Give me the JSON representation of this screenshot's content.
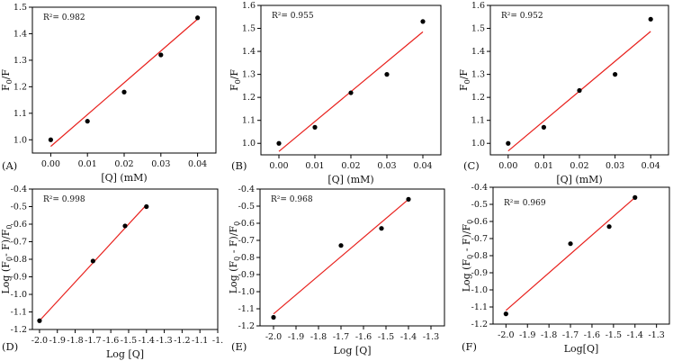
{
  "figure": {
    "title": "Stern-Volmer and double-log plots"
  },
  "chart_data": [
    {
      "panel_label": "(A)",
      "type": "scatter",
      "xlabel": "[Q] (mM)",
      "ylabel": "F0/F",
      "x": [
        0.0,
        0.01,
        0.02,
        0.03,
        0.04
      ],
      "y": [
        1.0,
        1.07,
        1.18,
        1.32,
        1.46
      ],
      "fit": {
        "x": [
          0.0,
          0.04
        ],
        "y": [
          0.975,
          1.455
        ]
      },
      "r2": "R²= 0.982",
      "xlim": [
        -0.005,
        0.045
      ],
      "ylim": [
        0.95,
        1.5
      ],
      "xticks": [
        0.0,
        0.01,
        0.02,
        0.03,
        0.04
      ],
      "xtick_labels": [
        "0.00",
        "0.01",
        "0.02",
        "0.03",
        "0.04"
      ],
      "yticks": [
        1.0,
        1.1,
        1.2,
        1.3,
        1.4,
        1.5
      ],
      "ytick_labels": [
        "1.0",
        "1.1",
        "1.2",
        "1.3",
        "1.4",
        "1.5"
      ],
      "xlabel_parts": [
        "[Q] (mM)"
      ],
      "ylabel_parts": [
        "F",
        "0",
        "/F"
      ],
      "colors": {
        "fit": "#e8201c",
        "points": "#000000"
      }
    },
    {
      "panel_label": "(B)",
      "type": "scatter",
      "xlabel": "[Q] (mM)",
      "ylabel": "F0/F",
      "x": [
        0.0,
        0.01,
        0.02,
        0.03,
        0.04
      ],
      "y": [
        1.0,
        1.07,
        1.22,
        1.3,
        1.53
      ],
      "fit": {
        "x": [
          0.0,
          0.04
        ],
        "y": [
          0.965,
          1.485
        ]
      },
      "r2": "R²= 0.955",
      "xlim": [
        -0.005,
        0.045
      ],
      "ylim": [
        0.95,
        1.6
      ],
      "xticks": [
        0.0,
        0.01,
        0.02,
        0.03,
        0.04
      ],
      "xtick_labels": [
        "0.00",
        "0.01",
        "0.02",
        "0.03",
        "0.04"
      ],
      "yticks": [
        1.0,
        1.1,
        1.2,
        1.3,
        1.4,
        1.5,
        1.6
      ],
      "ytick_labels": [
        "1.0",
        "1.1",
        "1.2",
        "1.3",
        "1.4",
        "1.5",
        "1.6"
      ],
      "xlabel_parts": [
        "[Q] (mM)"
      ],
      "ylabel_parts": [
        "F",
        "0",
        "/F"
      ],
      "colors": {
        "fit": "#e8201c",
        "points": "#000000"
      }
    },
    {
      "panel_label": "(C)",
      "type": "scatter",
      "xlabel": "[Q] (mM)",
      "ylabel": "F0/F",
      "x": [
        0.0,
        0.01,
        0.02,
        0.03,
        0.04
      ],
      "y": [
        1.0,
        1.07,
        1.23,
        1.3,
        1.54
      ],
      "fit": {
        "x": [
          0.0,
          0.04
        ],
        "y": [
          0.967,
          1.487
        ]
      },
      "r2": "R²= 0.952",
      "xlim": [
        -0.005,
        0.045
      ],
      "ylim": [
        0.95,
        1.6
      ],
      "xticks": [
        0.0,
        0.01,
        0.02,
        0.03,
        0.04
      ],
      "xtick_labels": [
        "0.00",
        "0.01",
        "0.02",
        "0.03",
        "0.04"
      ],
      "yticks": [
        1.0,
        1.1,
        1.2,
        1.3,
        1.4,
        1.5,
        1.6
      ],
      "ytick_labels": [
        "1.0",
        "1.1",
        "1.2",
        "1.3",
        "1.4",
        "1.5",
        "1.6"
      ],
      "xlabel_parts": [
        "[Q] (mM)"
      ],
      "ylabel_parts": [
        "F",
        "0",
        "/F"
      ],
      "colors": {
        "fit": "#e8201c",
        "points": "#000000"
      }
    },
    {
      "panel_label": "(D)",
      "type": "scatter",
      "xlabel": "Log [Q]",
      "ylabel": "Log (F0- F)/F0",
      "x": [
        -2.0,
        -1.7,
        -1.52,
        -1.4
      ],
      "y": [
        -1.15,
        -0.81,
        -0.61,
        -0.5
      ],
      "fit": {
        "x": [
          -2.0,
          -1.4
        ],
        "y": [
          -1.15,
          -0.49
        ]
      },
      "r2": "R²= 0.998",
      "xlim": [
        -2.04,
        -1.0
      ],
      "ylim": [
        -1.2,
        -0.4
      ],
      "xticks": [
        -2.0,
        -1.9,
        -1.8,
        -1.7,
        -1.6,
        -1.5,
        -1.4,
        -1.3,
        -1.2,
        -1.1,
        -1.0
      ],
      "xtick_labels": [
        "-2.0",
        "-1.9",
        "-1.8",
        "-1.7",
        "-1.6",
        "-1.5",
        "-1.4",
        "-1.3",
        "-1.2",
        "-1.1",
        "-1."
      ],
      "yticks": [
        -1.2,
        -1.1,
        -1.0,
        -0.9,
        -0.8,
        -0.7,
        -0.6,
        -0.5,
        -0.4
      ],
      "ytick_labels": [
        "-1.2",
        "-1.1",
        "-1.0",
        "-0.9",
        "-0.8",
        "-0.7",
        "-0.6",
        "-0.5",
        "-0.4"
      ],
      "xlabel_parts": [
        "Log [Q]"
      ],
      "ylabel_parts": [
        "Log (F",
        "0",
        "- F)/F",
        "0"
      ],
      "colors": {
        "fit": "#e8201c",
        "points": "#000000"
      }
    },
    {
      "panel_label": "(E)",
      "type": "scatter",
      "xlabel": "Log [Q]",
      "ylabel": "Log (F0 - F)/F0",
      "x": [
        -2.0,
        -1.7,
        -1.52,
        -1.4
      ],
      "y": [
        -1.15,
        -0.73,
        -0.63,
        -0.46
      ],
      "fit": {
        "x": [
          -2.0,
          -1.4
        ],
        "y": [
          -1.13,
          -0.46
        ]
      },
      "r2": "R²= 0.968",
      "xlim": [
        -2.06,
        -1.24
      ],
      "ylim": [
        -1.2,
        -0.4
      ],
      "xticks": [
        -2.0,
        -1.9,
        -1.8,
        -1.7,
        -1.6,
        -1.5,
        -1.4,
        -1.3
      ],
      "xtick_labels": [
        "-2.0",
        "-1.9",
        "-1.8",
        "-1.7",
        "-1.6",
        "-1.5",
        "-1.4",
        "-1.3"
      ],
      "yticks": [
        -1.2,
        -1.1,
        -1.0,
        -0.9,
        -0.8,
        -0.7,
        -0.6,
        -0.5,
        -0.4
      ],
      "ytick_labels": [
        "-1.2",
        "-1.1",
        "-1.0",
        "-0.9",
        "-0.8",
        "-0.7",
        "-0.6",
        "-0.5",
        "-0.4"
      ],
      "xlabel_parts": [
        "Log [Q]"
      ],
      "ylabel_parts": [
        "Log (F",
        "0",
        " - F)/F",
        "0"
      ],
      "colors": {
        "fit": "#e8201c",
        "points": "#000000"
      }
    },
    {
      "panel_label": "(F)",
      "type": "scatter",
      "xlabel": "Log[Q]",
      "ylabel": "Log (F0 - F)/F0",
      "x": [
        -2.0,
        -1.7,
        -1.52,
        -1.4
      ],
      "y": [
        -1.14,
        -0.73,
        -0.63,
        -0.46
      ],
      "fit": {
        "x": [
          -2.0,
          -1.4
        ],
        "y": [
          -1.12,
          -0.46
        ]
      },
      "r2": "R²= 0.969",
      "xlim": [
        -2.06,
        -1.24
      ],
      "ylim": [
        -1.2,
        -0.4
      ],
      "xticks": [
        -2.0,
        -1.9,
        -1.8,
        -1.7,
        -1.6,
        -1.5,
        -1.4,
        -1.3
      ],
      "xtick_labels": [
        "-2.0",
        "-1.9",
        "-1.8",
        "-1.7",
        "-1.6",
        "-1.5",
        "-1.4",
        "-1.3"
      ],
      "yticks": [
        -1.2,
        -1.1,
        -1.0,
        -0.9,
        -0.8,
        -0.7,
        -0.6,
        -0.5,
        -0.4
      ],
      "ytick_labels": [
        "-1.2",
        "-1.1",
        "-1.0",
        "-0.9",
        "-0.8",
        "-0.7",
        "-0.6",
        "-0.5",
        "-0.4"
      ],
      "xlabel_parts": [
        "Log[Q]"
      ],
      "ylabel_parts": [
        "Log (F",
        "0",
        " - F)/F",
        "0"
      ],
      "colors": {
        "fit": "#e8201c",
        "points": "#000000"
      }
    }
  ]
}
